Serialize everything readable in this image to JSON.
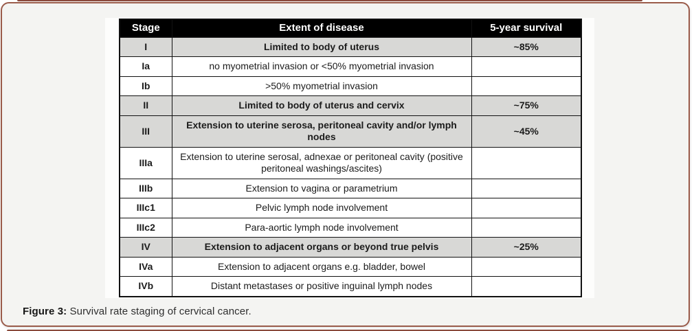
{
  "figure": {
    "caption_label": "Figure 3:",
    "caption_text": " Survival rate staging of cervical cancer."
  },
  "table": {
    "headers": [
      "Stage",
      "Extent of disease",
      "5-year survival"
    ],
    "rows": [
      {
        "stage": "I",
        "extent": "Limited to body of uterus",
        "survival": "~85%",
        "shaded": true
      },
      {
        "stage": "Ia",
        "extent": "no myometrial invasion or <50% myometrial invasion",
        "survival": "",
        "shaded": false
      },
      {
        "stage": "Ib",
        "extent": ">50% myometrial invasion",
        "survival": "",
        "shaded": false
      },
      {
        "stage": "II",
        "extent": "Limited to body of uterus and cervix",
        "survival": "~75%",
        "shaded": true
      },
      {
        "stage": "III",
        "extent": "Extension to uterine serosa, peritoneal cavity and/or lymph nodes",
        "survival": "~45%",
        "shaded": true
      },
      {
        "stage": "IIIa",
        "extent": "Extension to uterine serosal, adnexae or peritoneal cavity (positive peritoneal washings/ascites)",
        "survival": "",
        "shaded": false
      },
      {
        "stage": "IIIb",
        "extent": "Extension to vagina or parametrium",
        "survival": "",
        "shaded": false
      },
      {
        "stage": "IIIc1",
        "extent": "Pelvic lymph node involvement",
        "survival": "",
        "shaded": false
      },
      {
        "stage": "IIIc2",
        "extent": "Para-aortic lymph node involvement",
        "survival": "",
        "shaded": false
      },
      {
        "stage": "IV",
        "extent": "Extension to adjacent organs or beyond true pelvis",
        "survival": "~25%",
        "shaded": true
      },
      {
        "stage": "IVa",
        "extent": "Extension to adjacent organs e.g. bladder, bowel",
        "survival": "",
        "shaded": false
      },
      {
        "stage": "IVb",
        "extent": "Distant metastases or positive inguinal lymph nodes",
        "survival": "",
        "shaded": false
      }
    ]
  },
  "colors": {
    "panel_border": "#9a5b4a",
    "panel_bg": "#f4f4f2",
    "edge_line": "#8a4a3c",
    "header_bg": "#000000",
    "header_text": "#ffffff",
    "shaded_row_bg": "#d8d8d6",
    "table_border": "#111111",
    "body_text": "#1b1b1b"
  }
}
